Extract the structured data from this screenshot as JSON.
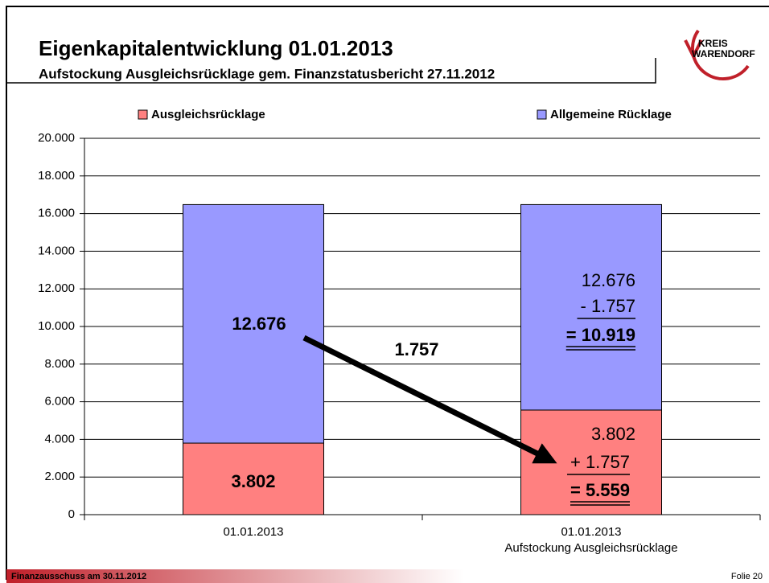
{
  "slide": {
    "logo_top": "KREIS",
    "logo_bottom": "WARENDORF",
    "footer": "Finanzausschuss am 30.11.2012",
    "page": "Folie 20"
  },
  "chart_data": {
    "type": "stacked_bar",
    "title": "Eigenkapitalentwicklung 01.01.2013",
    "subtitle": "Aufstockung Ausgleichsrücklage gem. Finanzstatusbericht 27.11.2012",
    "categories": [
      "01.01.2013",
      "01.01.2013\nAufstockung Ausgleichsrücklage"
    ],
    "series": [
      {
        "name": "Ausgleichsrücklage",
        "color": "#ff8080",
        "values": [
          3802,
          5559
        ],
        "value_labels": [
          "3.802",
          "= 5.559"
        ]
      },
      {
        "name": "Allgemeine Rücklage",
        "color": "#9999ff",
        "values": [
          12676,
          10919
        ],
        "value_labels": [
          "12.676",
          "= 10.919"
        ]
      }
    ],
    "annotations": [
      "1.757",
      "3.802",
      "+ 1.757",
      "12.676",
      "- 1.757"
    ],
    "ylim": [
      0,
      20000
    ],
    "yticks": [
      0,
      {
        "value": 2000,
        "label": "2.000"
      },
      {
        "value": 4000,
        "label": "4.000"
      },
      {
        "value": 6000,
        "label": "6.000"
      },
      {
        "value": 8000,
        "label": "8.000"
      },
      {
        "value": 10000,
        "label": "10.000"
      },
      {
        "value": 12000,
        "label": "12.000"
      },
      {
        "value": 14000,
        "label": "14.000"
      },
      {
        "value": 16000,
        "label": "16.000"
      },
      {
        "value": 18000,
        "label": "18.000"
      },
      {
        "value": 20000,
        "label": "20.000"
      }
    ],
    "grid": true,
    "legend": "top"
  }
}
